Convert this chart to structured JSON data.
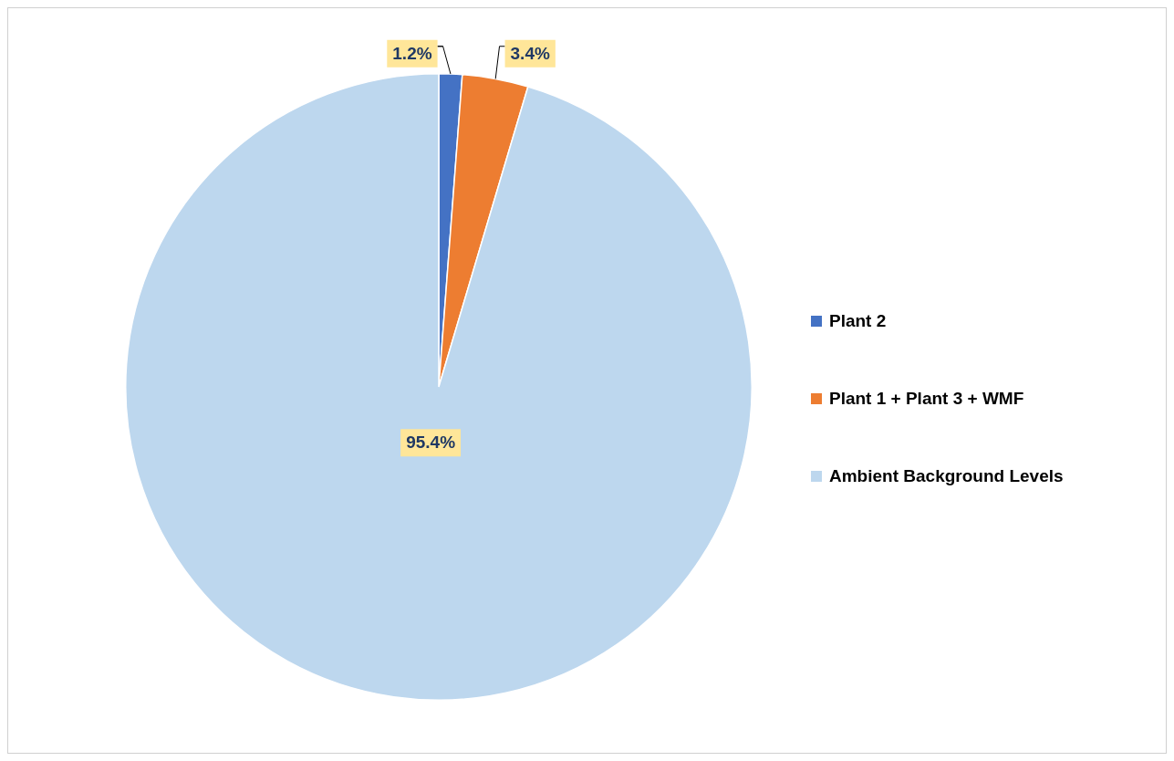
{
  "chart_data": {
    "type": "pie",
    "categories": [
      "Plant 2",
      "Plant 1 + Plant 3 + WMF",
      "Ambient Background Levels"
    ],
    "values": [
      1.2,
      3.4,
      95.4
    ],
    "colors": [
      "#4472c4",
      "#ed7d31",
      "#bdd7ee"
    ],
    "value_labels": [
      "1.2%",
      "3.4%",
      "95.4%"
    ],
    "legend": "right"
  }
}
